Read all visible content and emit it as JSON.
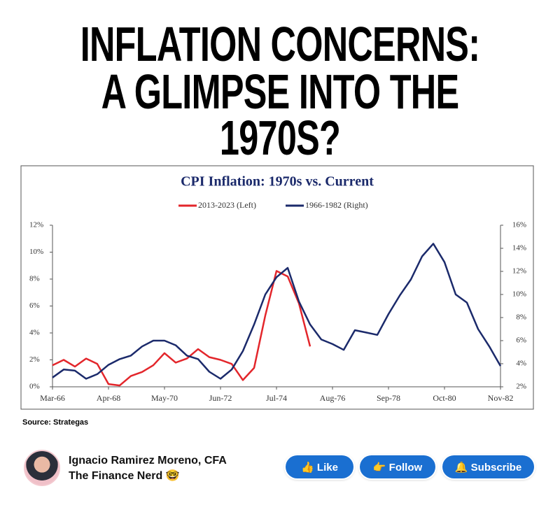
{
  "headline": [
    "INFLATION CONCERNS:",
    "A GLIMPSE INTO THE 1970S?"
  ],
  "chart_data": {
    "type": "line",
    "title": "CPI Inflation: 1970s vs. Current",
    "x": [
      "Mar-66",
      "Aug-66",
      "Jan-67",
      "Jun-67",
      "Nov-67",
      "Apr-68",
      "Sep-68",
      "Feb-69",
      "Jul-69",
      "Dec-69",
      "May-70",
      "Oct-70",
      "Mar-71",
      "Aug-71",
      "Jan-72",
      "Jun-72",
      "Nov-72",
      "Apr-73",
      "Sep-73",
      "Feb-74",
      "Jul-74",
      "Dec-74",
      "May-75",
      "Oct-75",
      "Mar-76",
      "Aug-76",
      "Jan-77",
      "Jun-77",
      "Nov-77",
      "Apr-78",
      "Sep-78",
      "Feb-79",
      "Jul-79",
      "Dec-79",
      "May-80",
      "Oct-80",
      "Mar-81",
      "Aug-81",
      "Jan-82",
      "Jun-82",
      "Nov-82"
    ],
    "series": [
      {
        "name": "2013-2023 (Left)",
        "color": "#e3262b",
        "axis": "y",
        "values": [
          1.6,
          2.0,
          1.5,
          2.1,
          1.7,
          0.2,
          0.1,
          0.8,
          1.1,
          1.6,
          2.5,
          1.8,
          2.1,
          2.8,
          2.2,
          2.0,
          1.7,
          0.5,
          1.4,
          5.3,
          8.6,
          8.2,
          6.2,
          3.0,
          null,
          null,
          null,
          null,
          null,
          null,
          null,
          null,
          null,
          null,
          null,
          null,
          null,
          null,
          null,
          null,
          null
        ]
      },
      {
        "name": "1966-1982 (Right)",
        "color": "#1b2a6b",
        "axis": "y2",
        "values": [
          2.8,
          3.5,
          3.4,
          2.7,
          3.1,
          3.9,
          4.4,
          4.7,
          5.5,
          6.0,
          6.0,
          5.6,
          4.7,
          4.4,
          3.3,
          2.7,
          3.5,
          5.1,
          7.4,
          10.0,
          11.5,
          12.3,
          9.4,
          7.4,
          6.1,
          5.7,
          5.2,
          6.9,
          6.7,
          6.5,
          8.3,
          9.9,
          11.3,
          13.3,
          14.4,
          12.8,
          10.0,
          9.3,
          7.0,
          5.5,
          3.8
        ]
      }
    ],
    "ylim": [
      0,
      12
    ],
    "yticks": [
      {
        "value": 0,
        "label": "0%"
      },
      {
        "value": 2,
        "label": "2%"
      },
      {
        "value": 4,
        "label": "4%"
      },
      {
        "value": 6,
        "label": "6%"
      },
      {
        "value": 8,
        "label": "8%"
      },
      {
        "value": 10,
        "label": "10%"
      },
      {
        "value": 12,
        "label": "12%"
      }
    ],
    "y2lim": [
      2,
      16
    ],
    "y2ticks": [
      {
        "value": 2,
        "label": "2%"
      },
      {
        "value": 4,
        "label": "4%"
      },
      {
        "value": 6,
        "label": "6%"
      },
      {
        "value": 8,
        "label": "8%"
      },
      {
        "value": 10,
        "label": "10%"
      },
      {
        "value": 12,
        "label": "12%"
      },
      {
        "value": 14,
        "label": "14%"
      },
      {
        "value": 16,
        "label": "16%"
      }
    ]
  },
  "source": "Source: Strategas",
  "author": {
    "name": "Ignacio Ramirez Moreno, CFA",
    "tagline": "The Finance Nerd 🤓"
  },
  "buttons": [
    "👍 Like",
    "👉 Follow",
    "🔔 Subscribe"
  ]
}
